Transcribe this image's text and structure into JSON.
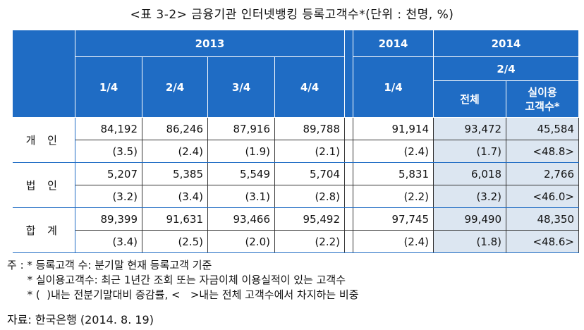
{
  "title": "<표 3-2> 금융기관 인터넷뱅킹 등록고객수*(단위 : 천명, %)",
  "header": {
    "year_2013": "2013",
    "year_2014a": "2014",
    "year_2014b": "2014",
    "q_2_4": "2/4",
    "quarters": [
      "1/4",
      "2/4",
      "3/4",
      "4/4"
    ],
    "q_2014": "1/4",
    "total": "전체",
    "active_line1": "실이용",
    "active_line2": "고객수*"
  },
  "rows": [
    {
      "label": "개 인",
      "values": [
        "84,192",
        "86,246",
        "87,916",
        "89,788",
        "91,914",
        "93,472",
        "45,584"
      ],
      "rates": [
        "(3.5)",
        "(2.4)",
        "(1.9)",
        "(2.1)",
        "(2.4)",
        "(1.7)",
        "<48.8>"
      ]
    },
    {
      "label": "법 인",
      "values": [
        "5,207",
        "5,385",
        "5,549",
        "5,704",
        "5,831",
        "6,018",
        "2,766"
      ],
      "rates": [
        "(3.2)",
        "(3.4)",
        "(3.1)",
        "(2.8)",
        "(2.2)",
        "(3.2)",
        "<46.0>"
      ]
    },
    {
      "label": "합 계",
      "values": [
        "89,399",
        "91,631",
        "93,466",
        "95,492",
        "97,745",
        "99,490",
        "48,350"
      ],
      "rates": [
        "(3.4)",
        "(2.5)",
        "(2.0)",
        "(2.2)",
        "(2.4)",
        "(1.8)",
        "<48.6>"
      ]
    }
  ],
  "notes": [
    "주 : * 등록고객 수: 분기말 현재 등록고객 기준",
    "      * 실이용고객수: 최근 1년간 조회 또는 자금이체 이용실적이 있는 고객수",
    "      * (  )내는 전분기말대비 증감률, <   >내는 전체 고객수에서 차지하는 비중"
  ],
  "source": "자료: 한국은행 (2014. 8. 19)"
}
